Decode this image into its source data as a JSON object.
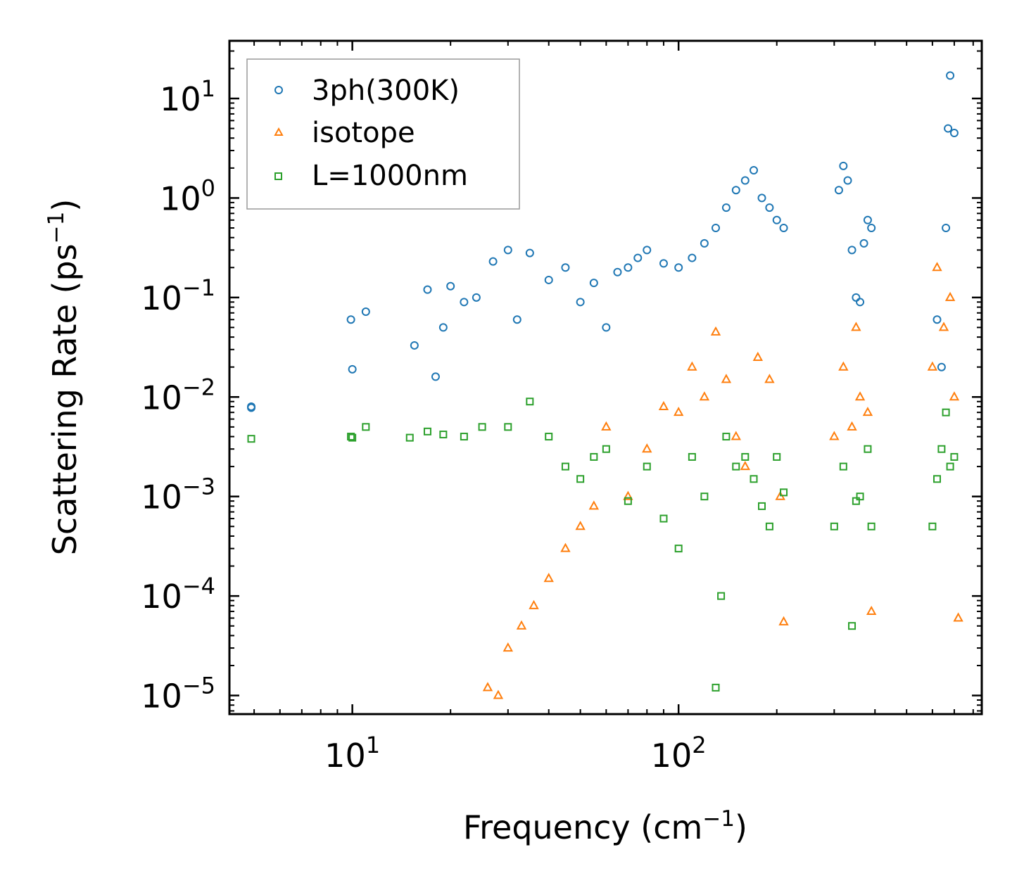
{
  "chart_data": {
    "type": "scatter",
    "xscale": "log",
    "yscale": "log",
    "xlim": [
      4.2,
      850
    ],
    "ylim": [
      6.5e-06,
      38
    ],
    "xlabel": {
      "text": "Frequency (cm",
      "sup": "−1",
      "tail": ")"
    },
    "ylabel": {
      "text": "Scattering Rate (ps",
      "sup": "−1",
      "tail": ")"
    },
    "xticks": [
      {
        "value": 10,
        "base": "10",
        "exp": "1"
      },
      {
        "value": 100,
        "base": "10",
        "exp": "2"
      }
    ],
    "yticks": [
      {
        "value": 10,
        "base": "10",
        "exp": "1"
      },
      {
        "value": 1,
        "base": "10",
        "exp": "0"
      },
      {
        "value": 0.1,
        "base": "10",
        "exp": "−1"
      },
      {
        "value": 0.01,
        "base": "10",
        "exp": "−2"
      },
      {
        "value": 0.001,
        "base": "10",
        "exp": "−3"
      },
      {
        "value": 0.0001,
        "base": "10",
        "exp": "−4"
      },
      {
        "value": 1e-05,
        "base": "10",
        "exp": "−5"
      }
    ],
    "legend_position": "top-left",
    "series": [
      {
        "name": "3ph(300K)",
        "marker": "circle",
        "color": "#1f77b4",
        "x": [
          4.9,
          4.9,
          9.9,
          10,
          11,
          15.5,
          17,
          18,
          19,
          20,
          22,
          24,
          27,
          30,
          32,
          35,
          40,
          45,
          50,
          55,
          60,
          65,
          70,
          75,
          80,
          90,
          100,
          110,
          120,
          130,
          140,
          150,
          160,
          170,
          180,
          190,
          200,
          210,
          310,
          320,
          330,
          340,
          350,
          360,
          370,
          380,
          390,
          620,
          640,
          660,
          670,
          680,
          700
        ],
        "y": [
          0.008,
          0.0078,
          0.06,
          0.019,
          0.072,
          0.033,
          0.12,
          0.016,
          0.05,
          0.13,
          0.09,
          0.1,
          0.23,
          0.3,
          0.06,
          0.28,
          0.15,
          0.2,
          0.09,
          0.14,
          0.05,
          0.18,
          0.2,
          0.25,
          0.3,
          0.22,
          0.2,
          0.25,
          0.35,
          0.5,
          0.8,
          1.2,
          1.5,
          1.9,
          1.0,
          0.8,
          0.6,
          0.5,
          1.2,
          2.1,
          1.5,
          0.3,
          0.1,
          0.09,
          0.35,
          0.6,
          0.5,
          0.06,
          0.02,
          0.5,
          5,
          17,
          4.5
        ]
      },
      {
        "name": "isotope",
        "marker": "triangle",
        "color": "#ff7f0e",
        "x": [
          26,
          28,
          30,
          33,
          36,
          40,
          45,
          50,
          55,
          60,
          70,
          80,
          90,
          100,
          110,
          120,
          130,
          140,
          150,
          160,
          175,
          190,
          205,
          210,
          300,
          320,
          340,
          350,
          360,
          380,
          390,
          600,
          620,
          650,
          680,
          700,
          720
        ],
        "y": [
          1.2e-05,
          1e-05,
          3e-05,
          5e-05,
          8e-05,
          0.00015,
          0.0003,
          0.0005,
          0.0008,
          0.005,
          0.001,
          0.003,
          0.008,
          0.007,
          0.02,
          0.01,
          0.045,
          0.015,
          0.004,
          0.002,
          0.025,
          0.015,
          0.001,
          5.5e-05,
          0.004,
          0.02,
          0.005,
          0.05,
          0.01,
          0.007,
          7e-05,
          0.02,
          0.2,
          0.05,
          0.1,
          0.01,
          6e-05
        ]
      },
      {
        "name": "L=1000nm",
        "marker": "square",
        "color": "#2ca02c",
        "x": [
          4.9,
          9.9,
          10,
          11,
          15,
          17,
          19,
          22,
          25,
          30,
          35,
          40,
          45,
          50,
          55,
          60,
          70,
          80,
          90,
          100,
          110,
          120,
          130,
          135,
          140,
          150,
          160,
          170,
          180,
          190,
          200,
          210,
          300,
          320,
          340,
          350,
          360,
          380,
          390,
          600,
          620,
          640,
          660,
          680,
          700
        ],
        "y": [
          0.0038,
          0.004,
          0.0039,
          0.005,
          0.0039,
          0.0045,
          0.0042,
          0.004,
          0.005,
          0.005,
          0.009,
          0.004,
          0.002,
          0.0015,
          0.0025,
          0.003,
          0.0009,
          0.002,
          0.0006,
          0.0003,
          0.0025,
          0.001,
          1.2e-05,
          0.0001,
          0.004,
          0.002,
          0.0025,
          0.0015,
          0.0008,
          0.0005,
          0.0025,
          0.0011,
          0.0005,
          0.002,
          5e-05,
          0.0009,
          0.001,
          0.003,
          0.0005,
          0.0005,
          0.0015,
          0.003,
          0.007,
          0.002,
          0.0025
        ]
      }
    ]
  }
}
